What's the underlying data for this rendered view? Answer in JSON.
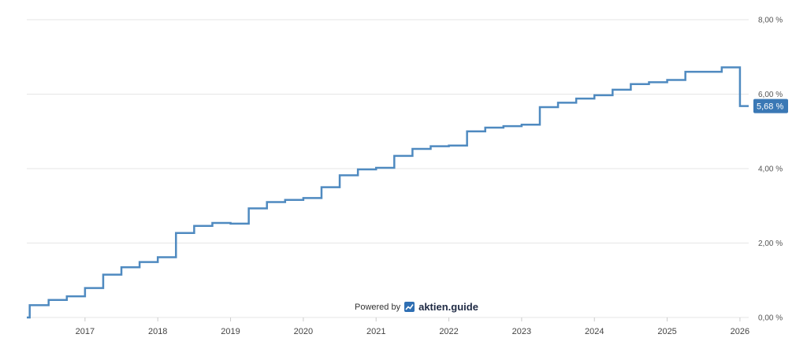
{
  "chart_data": {
    "type": "line",
    "step": true,
    "title": "",
    "xlabel": "",
    "ylabel": "",
    "xlim": [
      2016.2,
      2026.12
    ],
    "ylim": [
      0,
      8
    ],
    "y_ticks": [
      "0,00 %",
      "2,00 %",
      "4,00 %",
      "6,00 %",
      "8,00 %"
    ],
    "y_tick_values": [
      0,
      2,
      4,
      6,
      8
    ],
    "x_ticks": [
      "2017",
      "2018",
      "2019",
      "2020",
      "2021",
      "2022",
      "2023",
      "2024",
      "2025",
      "2026"
    ],
    "x_tick_values": [
      2017,
      2018,
      2019,
      2020,
      2021,
      2022,
      2023,
      2024,
      2025,
      2026
    ],
    "grid": true,
    "line_color": "#4f8ac0",
    "last_value_label": "5,68 %",
    "series": [
      {
        "x": [
          2016.2,
          2016.24,
          2016.5,
          2016.75,
          2017.0,
          2017.25,
          2017.5,
          2017.75,
          2018.0,
          2018.25,
          2018.5,
          2018.75,
          2019.0,
          2019.25,
          2019.5,
          2019.75,
          2020.0,
          2020.25,
          2020.5,
          2020.75,
          2021.0,
          2021.25,
          2021.5,
          2021.75,
          2022.0,
          2022.25,
          2022.5,
          2022.75,
          2023.0,
          2023.25,
          2023.5,
          2023.75,
          2024.0,
          2024.25,
          2024.5,
          2024.75,
          2025.0,
          2025.25,
          2025.5,
          2025.75,
          2026.0,
          2026.12
        ],
        "y": [
          0.0,
          0.33,
          0.47,
          0.57,
          0.79,
          1.15,
          1.35,
          1.49,
          1.62,
          2.27,
          2.46,
          2.54,
          2.52,
          2.93,
          3.1,
          3.16,
          3.21,
          3.5,
          3.82,
          3.98,
          4.02,
          4.34,
          4.53,
          4.6,
          4.62,
          5.0,
          5.1,
          5.14,
          5.18,
          5.65,
          5.77,
          5.88,
          5.97,
          6.12,
          6.27,
          6.32,
          6.38,
          6.6,
          6.6,
          6.72,
          5.68,
          5.68
        ]
      }
    ]
  },
  "branding": {
    "prefix": "Powered by",
    "brand": "aktien.guide"
  }
}
